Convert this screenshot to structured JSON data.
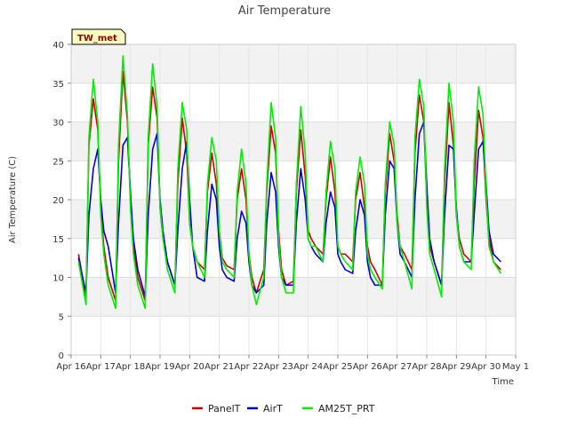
{
  "chart_data": {
    "type": "line",
    "title": "Air Temperature",
    "xlabel": "Time",
    "ylabel": "Air Temperature (C)",
    "badge": "TW_met",
    "ylim": [
      0,
      40
    ],
    "yticks": [
      0,
      5,
      10,
      15,
      20,
      25,
      30,
      35,
      40
    ],
    "xlim": [
      0,
      15
    ],
    "xtick_labels": [
      "Apr 16",
      "Apr 17",
      "Apr 18",
      "Apr 19",
      "Apr 20",
      "Apr 21",
      "Apr 22",
      "Apr 23",
      "Apr 24",
      "Apr 25",
      "Apr 26",
      "Apr 27",
      "Apr 28",
      "Apr 29",
      "Apr 30",
      "May 1"
    ],
    "grid": true,
    "legend_position": "bottom",
    "x_unit": "days since Apr 16 00:00",
    "series": [
      {
        "name": "PanelT",
        "color": "#cc0000",
        "x": [
          0.25,
          0.5,
          0.6,
          0.75,
          0.9,
          1.0,
          1.1,
          1.25,
          1.5,
          1.6,
          1.75,
          1.9,
          2.0,
          2.1,
          2.25,
          2.5,
          2.6,
          2.75,
          2.9,
          3.0,
          3.1,
          3.25,
          3.5,
          3.6,
          3.75,
          3.9,
          4.0,
          4.1,
          4.25,
          4.5,
          4.6,
          4.75,
          4.9,
          5.0,
          5.1,
          5.25,
          5.5,
          5.6,
          5.75,
          5.9,
          6.0,
          6.1,
          6.25,
          6.5,
          6.6,
          6.75,
          6.9,
          7.0,
          7.1,
          7.25,
          7.5,
          7.6,
          7.75,
          7.9,
          8.0,
          8.1,
          8.25,
          8.5,
          8.6,
          8.75,
          8.9,
          9.0,
          9.1,
          9.25,
          9.5,
          9.6,
          9.75,
          9.9,
          10.0,
          10.1,
          10.25,
          10.5,
          10.6,
          10.75,
          10.9,
          11.0,
          11.1,
          11.25,
          11.5,
          11.6,
          11.75,
          11.9,
          12.0,
          12.1,
          12.25,
          12.5,
          12.6,
          12.75,
          12.9,
          13.0,
          13.1,
          13.25,
          13.5,
          13.6,
          13.75,
          13.9,
          14.0,
          14.1,
          14.25,
          14.5
        ],
        "y": [
          13.0,
          7.5,
          27.0,
          33.0,
          29.0,
          19.0,
          14.0,
          10.0,
          7.0,
          25.0,
          36.5,
          30.0,
          20.0,
          14.0,
          10.0,
          7.0,
          27.0,
          34.5,
          30.5,
          19.0,
          15.0,
          12.0,
          9.0,
          22.0,
          30.5,
          26.0,
          17.0,
          14.0,
          12.0,
          11.0,
          21.0,
          26.0,
          22.0,
          16.0,
          12.5,
          11.5,
          11.0,
          20.0,
          24.0,
          20.0,
          13.0,
          10.0,
          8.0,
          11.0,
          21.0,
          29.5,
          26.0,
          16.0,
          11.0,
          9.0,
          9.5,
          21.0,
          29.0,
          23.0,
          16.0,
          15.0,
          14.0,
          13.0,
          20.0,
          25.5,
          21.0,
          14.0,
          13.0,
          13.0,
          12.0,
          20.0,
          23.5,
          19.0,
          14.0,
          12.0,
          11.0,
          9.0,
          21.0,
          28.5,
          25.0,
          18.0,
          14.0,
          13.0,
          11.0,
          26.0,
          33.5,
          30.0,
          20.0,
          14.0,
          12.0,
          9.0,
          22.0,
          32.5,
          27.0,
          18.0,
          15.0,
          13.0,
          12.0,
          22.0,
          31.5,
          28.0,
          20.0,
          15.0,
          12.0,
          11.0
        ]
      },
      {
        "name": "AirT",
        "color": "#0000cc",
        "x": [
          0.25,
          0.5,
          0.6,
          0.75,
          0.9,
          1.0,
          1.1,
          1.25,
          1.5,
          1.6,
          1.75,
          1.9,
          2.0,
          2.1,
          2.25,
          2.5,
          2.6,
          2.75,
          2.9,
          3.0,
          3.1,
          3.25,
          3.5,
          3.6,
          3.75,
          3.9,
          4.0,
          4.1,
          4.25,
          4.5,
          4.6,
          4.75,
          4.9,
          5.0,
          5.1,
          5.25,
          5.5,
          5.6,
          5.75,
          5.9,
          6.0,
          6.1,
          6.25,
          6.5,
          6.6,
          6.75,
          6.9,
          7.0,
          7.1,
          7.25,
          7.5,
          7.6,
          7.75,
          7.9,
          8.0,
          8.1,
          8.25,
          8.5,
          8.6,
          8.75,
          8.9,
          9.0,
          9.1,
          9.25,
          9.5,
          9.6,
          9.75,
          9.9,
          10.0,
          10.1,
          10.25,
          10.5,
          10.6,
          10.75,
          10.9,
          11.0,
          11.1,
          11.25,
          11.5,
          11.6,
          11.75,
          11.9,
          12.0,
          12.1,
          12.25,
          12.5,
          12.6,
          12.75,
          12.9,
          13.0,
          13.1,
          13.25,
          13.5,
          13.6,
          13.75,
          13.9,
          14.0,
          14.1,
          14.25,
          14.5
        ],
        "y": [
          12.5,
          8.0,
          18.0,
          24.0,
          26.5,
          20.0,
          16.0,
          14.0,
          8.0,
          17.0,
          27.0,
          28.0,
          21.0,
          15.0,
          11.0,
          7.5,
          18.0,
          26.5,
          28.5,
          20.0,
          16.0,
          12.0,
          9.0,
          16.0,
          24.0,
          27.5,
          20.0,
          14.0,
          10.0,
          9.5,
          16.0,
          22.0,
          20.0,
          14.0,
          11.0,
          10.0,
          9.5,
          15.0,
          18.5,
          17.0,
          12.0,
          9.0,
          8.0,
          9.0,
          17.0,
          23.5,
          21.0,
          14.0,
          10.0,
          9.0,
          9.0,
          17.0,
          24.0,
          20.0,
          15.0,
          14.0,
          13.0,
          12.0,
          17.0,
          21.0,
          19.0,
          13.0,
          12.0,
          11.0,
          10.5,
          16.0,
          20.0,
          18.0,
          12.0,
          10.0,
          9.0,
          9.0,
          18.0,
          25.0,
          24.0,
          17.0,
          13.0,
          12.0,
          10.0,
          20.0,
          28.5,
          30.0,
          22.0,
          15.0,
          12.0,
          9.0,
          18.0,
          27.0,
          26.5,
          19.0,
          14.0,
          12.0,
          12.0,
          18.0,
          26.5,
          27.5,
          22.0,
          16.0,
          13.0,
          12.0
        ]
      },
      {
        "name": "AM25T_PRT",
        "color": "#00ee00",
        "x": [
          0.25,
          0.5,
          0.6,
          0.75,
          0.9,
          1.0,
          1.1,
          1.25,
          1.5,
          1.6,
          1.75,
          1.9,
          2.0,
          2.1,
          2.25,
          2.5,
          2.6,
          2.75,
          2.9,
          3.0,
          3.1,
          3.25,
          3.5,
          3.6,
          3.75,
          3.9,
          4.0,
          4.1,
          4.25,
          4.5,
          4.6,
          4.75,
          4.9,
          5.0,
          5.1,
          5.25,
          5.5,
          5.6,
          5.75,
          5.9,
          6.0,
          6.1,
          6.25,
          6.5,
          6.6,
          6.75,
          6.9,
          7.0,
          7.1,
          7.25,
          7.5,
          7.6,
          7.75,
          7.9,
          8.0,
          8.1,
          8.25,
          8.5,
          8.6,
          8.75,
          8.9,
          9.0,
          9.1,
          9.25,
          9.5,
          9.6,
          9.75,
          9.9,
          10.0,
          10.1,
          10.25,
          10.5,
          10.6,
          10.75,
          10.9,
          11.0,
          11.1,
          11.25,
          11.5,
          11.6,
          11.75,
          11.9,
          12.0,
          12.1,
          12.25,
          12.5,
          12.6,
          12.75,
          12.9,
          13.0,
          13.1,
          13.25,
          13.5,
          13.6,
          13.75,
          13.9,
          14.0,
          14.1,
          14.25,
          14.5
        ],
        "y": [
          12.0,
          6.5,
          28.0,
          35.5,
          30.0,
          18.0,
          13.0,
          9.0,
          6.0,
          27.0,
          38.5,
          31.0,
          19.0,
          13.0,
          9.0,
          6.0,
          28.0,
          37.5,
          32.0,
          19.0,
          15.0,
          11.0,
          8.0,
          24.0,
          32.5,
          29.0,
          17.0,
          14.0,
          12.0,
          10.0,
          22.0,
          28.0,
          25.0,
          16.0,
          12.0,
          11.0,
          10.0,
          21.0,
          26.5,
          22.0,
          13.0,
          9.0,
          6.5,
          10.0,
          22.0,
          32.5,
          28.0,
          15.0,
          10.0,
          8.0,
          8.0,
          22.0,
          32.0,
          26.0,
          15.0,
          14.0,
          14.0,
          12.0,
          21.0,
          27.5,
          24.0,
          14.0,
          13.0,
          12.0,
          11.0,
          21.0,
          25.5,
          22.0,
          13.0,
          11.0,
          10.0,
          8.5,
          22.0,
          30.0,
          27.0,
          17.0,
          14.0,
          12.0,
          8.5,
          28.0,
          35.5,
          32.0,
          19.0,
          13.0,
          11.0,
          7.5,
          24.0,
          35.0,
          30.0,
          18.0,
          14.0,
          12.0,
          11.0,
          25.0,
          34.5,
          31.0,
          21.0,
          14.0,
          12.0,
          10.5
        ]
      }
    ]
  }
}
